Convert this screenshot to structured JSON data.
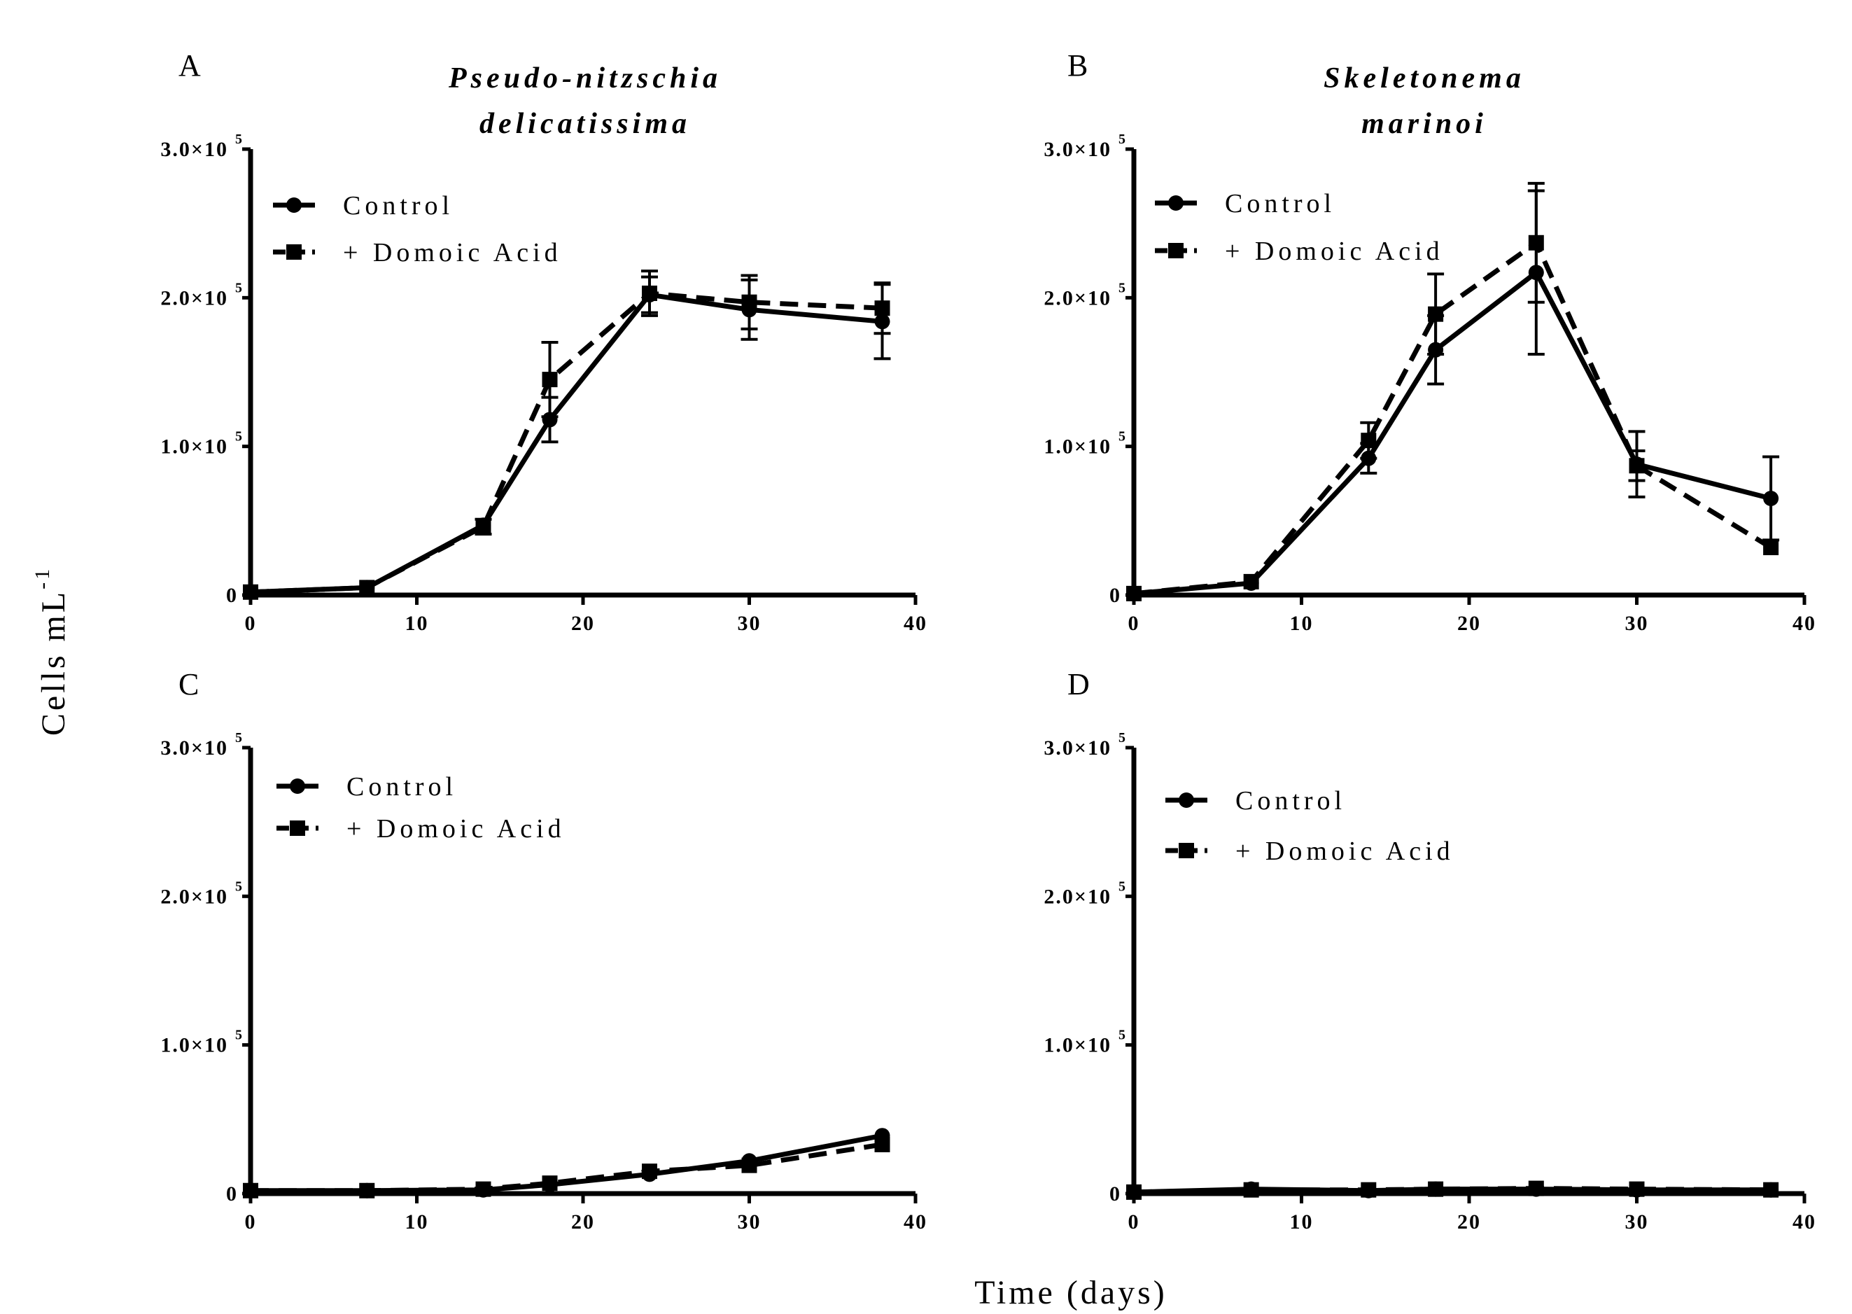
{
  "figure": {
    "ylabel": "Cells mL",
    "ylabel_exponent": "-1",
    "xlabel": "Time (days)"
  },
  "chart_data": [
    {
      "type": "line",
      "panel": "A",
      "title_lines": [
        "Pseudo-nitzschia",
        "delicatissima"
      ],
      "xlim": [
        0,
        40
      ],
      "ylim": [
        0,
        300000
      ],
      "xticks": [
        "0",
        "10",
        "20",
        "30",
        "40"
      ],
      "yticks": [
        {
          "value": 0,
          "mantissa": "0",
          "exp": ""
        },
        {
          "value": 100000,
          "mantissa": "1.0×10",
          "exp": "5"
        },
        {
          "value": 200000,
          "mantissa": "2.0×10",
          "exp": "5"
        },
        {
          "value": 300000,
          "mantissa": "3.0×10",
          "exp": "5"
        }
      ],
      "x": [
        0,
        7,
        14,
        18,
        24,
        30,
        38
      ],
      "legend_position": "top-left",
      "series": [
        {
          "name": "Control",
          "marker": "circle",
          "dash": "solid",
          "values": [
            2000,
            5000,
            47000,
            118000,
            202000,
            192000,
            184000
          ],
          "errors": [
            0,
            0,
            0,
            15000,
            12000,
            20000,
            25000
          ]
        },
        {
          "name": "+ Domoic Acid",
          "marker": "square",
          "dash": "dashed",
          "values": [
            2000,
            5000,
            46000,
            145000,
            203000,
            197000,
            193000
          ],
          "errors": [
            0,
            0,
            5000,
            25000,
            15000,
            18000,
            17000
          ]
        }
      ]
    },
    {
      "type": "line",
      "panel": "B",
      "title_lines": [
        "Skeletonema",
        "marinoi"
      ],
      "xlim": [
        0,
        40
      ],
      "ylim": [
        0,
        300000
      ],
      "xticks": [
        "0",
        "10",
        "20",
        "30",
        "40"
      ],
      "yticks": [
        {
          "value": 0,
          "mantissa": "0",
          "exp": ""
        },
        {
          "value": 100000,
          "mantissa": "1.0×10",
          "exp": "5"
        },
        {
          "value": 200000,
          "mantissa": "2.0×10",
          "exp": "5"
        },
        {
          "value": 300000,
          "mantissa": "3.0×10",
          "exp": "5"
        }
      ],
      "x": [
        0,
        7,
        14,
        18,
        24,
        30,
        38
      ],
      "legend_position": "top-left",
      "series": [
        {
          "name": "Control",
          "marker": "circle",
          "dash": "solid",
          "values": [
            1000,
            8000,
            92000,
            165000,
            217000,
            88000,
            65000
          ],
          "errors": [
            0,
            0,
            10000,
            23000,
            55000,
            22000,
            28000
          ]
        },
        {
          "name": "+ Domoic Acid",
          "marker": "square",
          "dash": "dashed",
          "values": [
            1000,
            9000,
            104000,
            189000,
            237000,
            87000,
            32000
          ],
          "errors": [
            0,
            0,
            12000,
            27000,
            40000,
            10000,
            0
          ]
        }
      ]
    },
    {
      "type": "line",
      "panel": "C",
      "title_lines": [],
      "xlim": [
        0,
        40
      ],
      "ylim": [
        0,
        300000
      ],
      "xticks": [
        "0",
        "10",
        "20",
        "30",
        "40"
      ],
      "yticks": [
        {
          "value": 0,
          "mantissa": "0",
          "exp": ""
        },
        {
          "value": 100000,
          "mantissa": "1.0×10",
          "exp": "5"
        },
        {
          "value": 200000,
          "mantissa": "2.0×10",
          "exp": "5"
        },
        {
          "value": 300000,
          "mantissa": "3.0×10",
          "exp": "5"
        }
      ],
      "x": [
        0,
        7,
        14,
        18,
        24,
        30,
        38
      ],
      "legend_position": "top-left",
      "series": [
        {
          "name": "Control",
          "marker": "circle",
          "dash": "solid",
          "values": [
            2000,
            2000,
            2500,
            6000,
            13000,
            22000,
            39000
          ],
          "errors": [
            0,
            0,
            0,
            0,
            0,
            0,
            0
          ]
        },
        {
          "name": "+ Domoic Acid",
          "marker": "square",
          "dash": "dashed",
          "values": [
            2000,
            2000,
            3000,
            7000,
            15000,
            19000,
            33000
          ],
          "errors": [
            0,
            0,
            0,
            0,
            0,
            0,
            0
          ]
        }
      ]
    },
    {
      "type": "line",
      "panel": "D",
      "title_lines": [],
      "xlim": [
        0,
        40
      ],
      "ylim": [
        0,
        300000
      ],
      "xticks": [
        "0",
        "10",
        "20",
        "30",
        "40"
      ],
      "yticks": [
        {
          "value": 0,
          "mantissa": "0",
          "exp": ""
        },
        {
          "value": 100000,
          "mantissa": "1.0×10",
          "exp": "5"
        },
        {
          "value": 200000,
          "mantissa": "2.0×10",
          "exp": "5"
        },
        {
          "value": 300000,
          "mantissa": "3.0×10",
          "exp": "5"
        }
      ],
      "x": [
        0,
        7,
        14,
        18,
        24,
        30,
        38
      ],
      "legend_position": "top-left",
      "series": [
        {
          "name": "Control",
          "marker": "circle",
          "dash": "solid",
          "values": [
            1000,
            3000,
            2000,
            3000,
            3000,
            2500,
            2500
          ],
          "errors": [
            0,
            0,
            0,
            0,
            0,
            0,
            0
          ]
        },
        {
          "name": "+ Domoic Acid",
          "marker": "square",
          "dash": "dashed",
          "values": [
            1000,
            2500,
            2500,
            3000,
            3500,
            3000,
            2500
          ],
          "errors": [
            0,
            0,
            0,
            0,
            0,
            0,
            0
          ]
        }
      ]
    }
  ]
}
